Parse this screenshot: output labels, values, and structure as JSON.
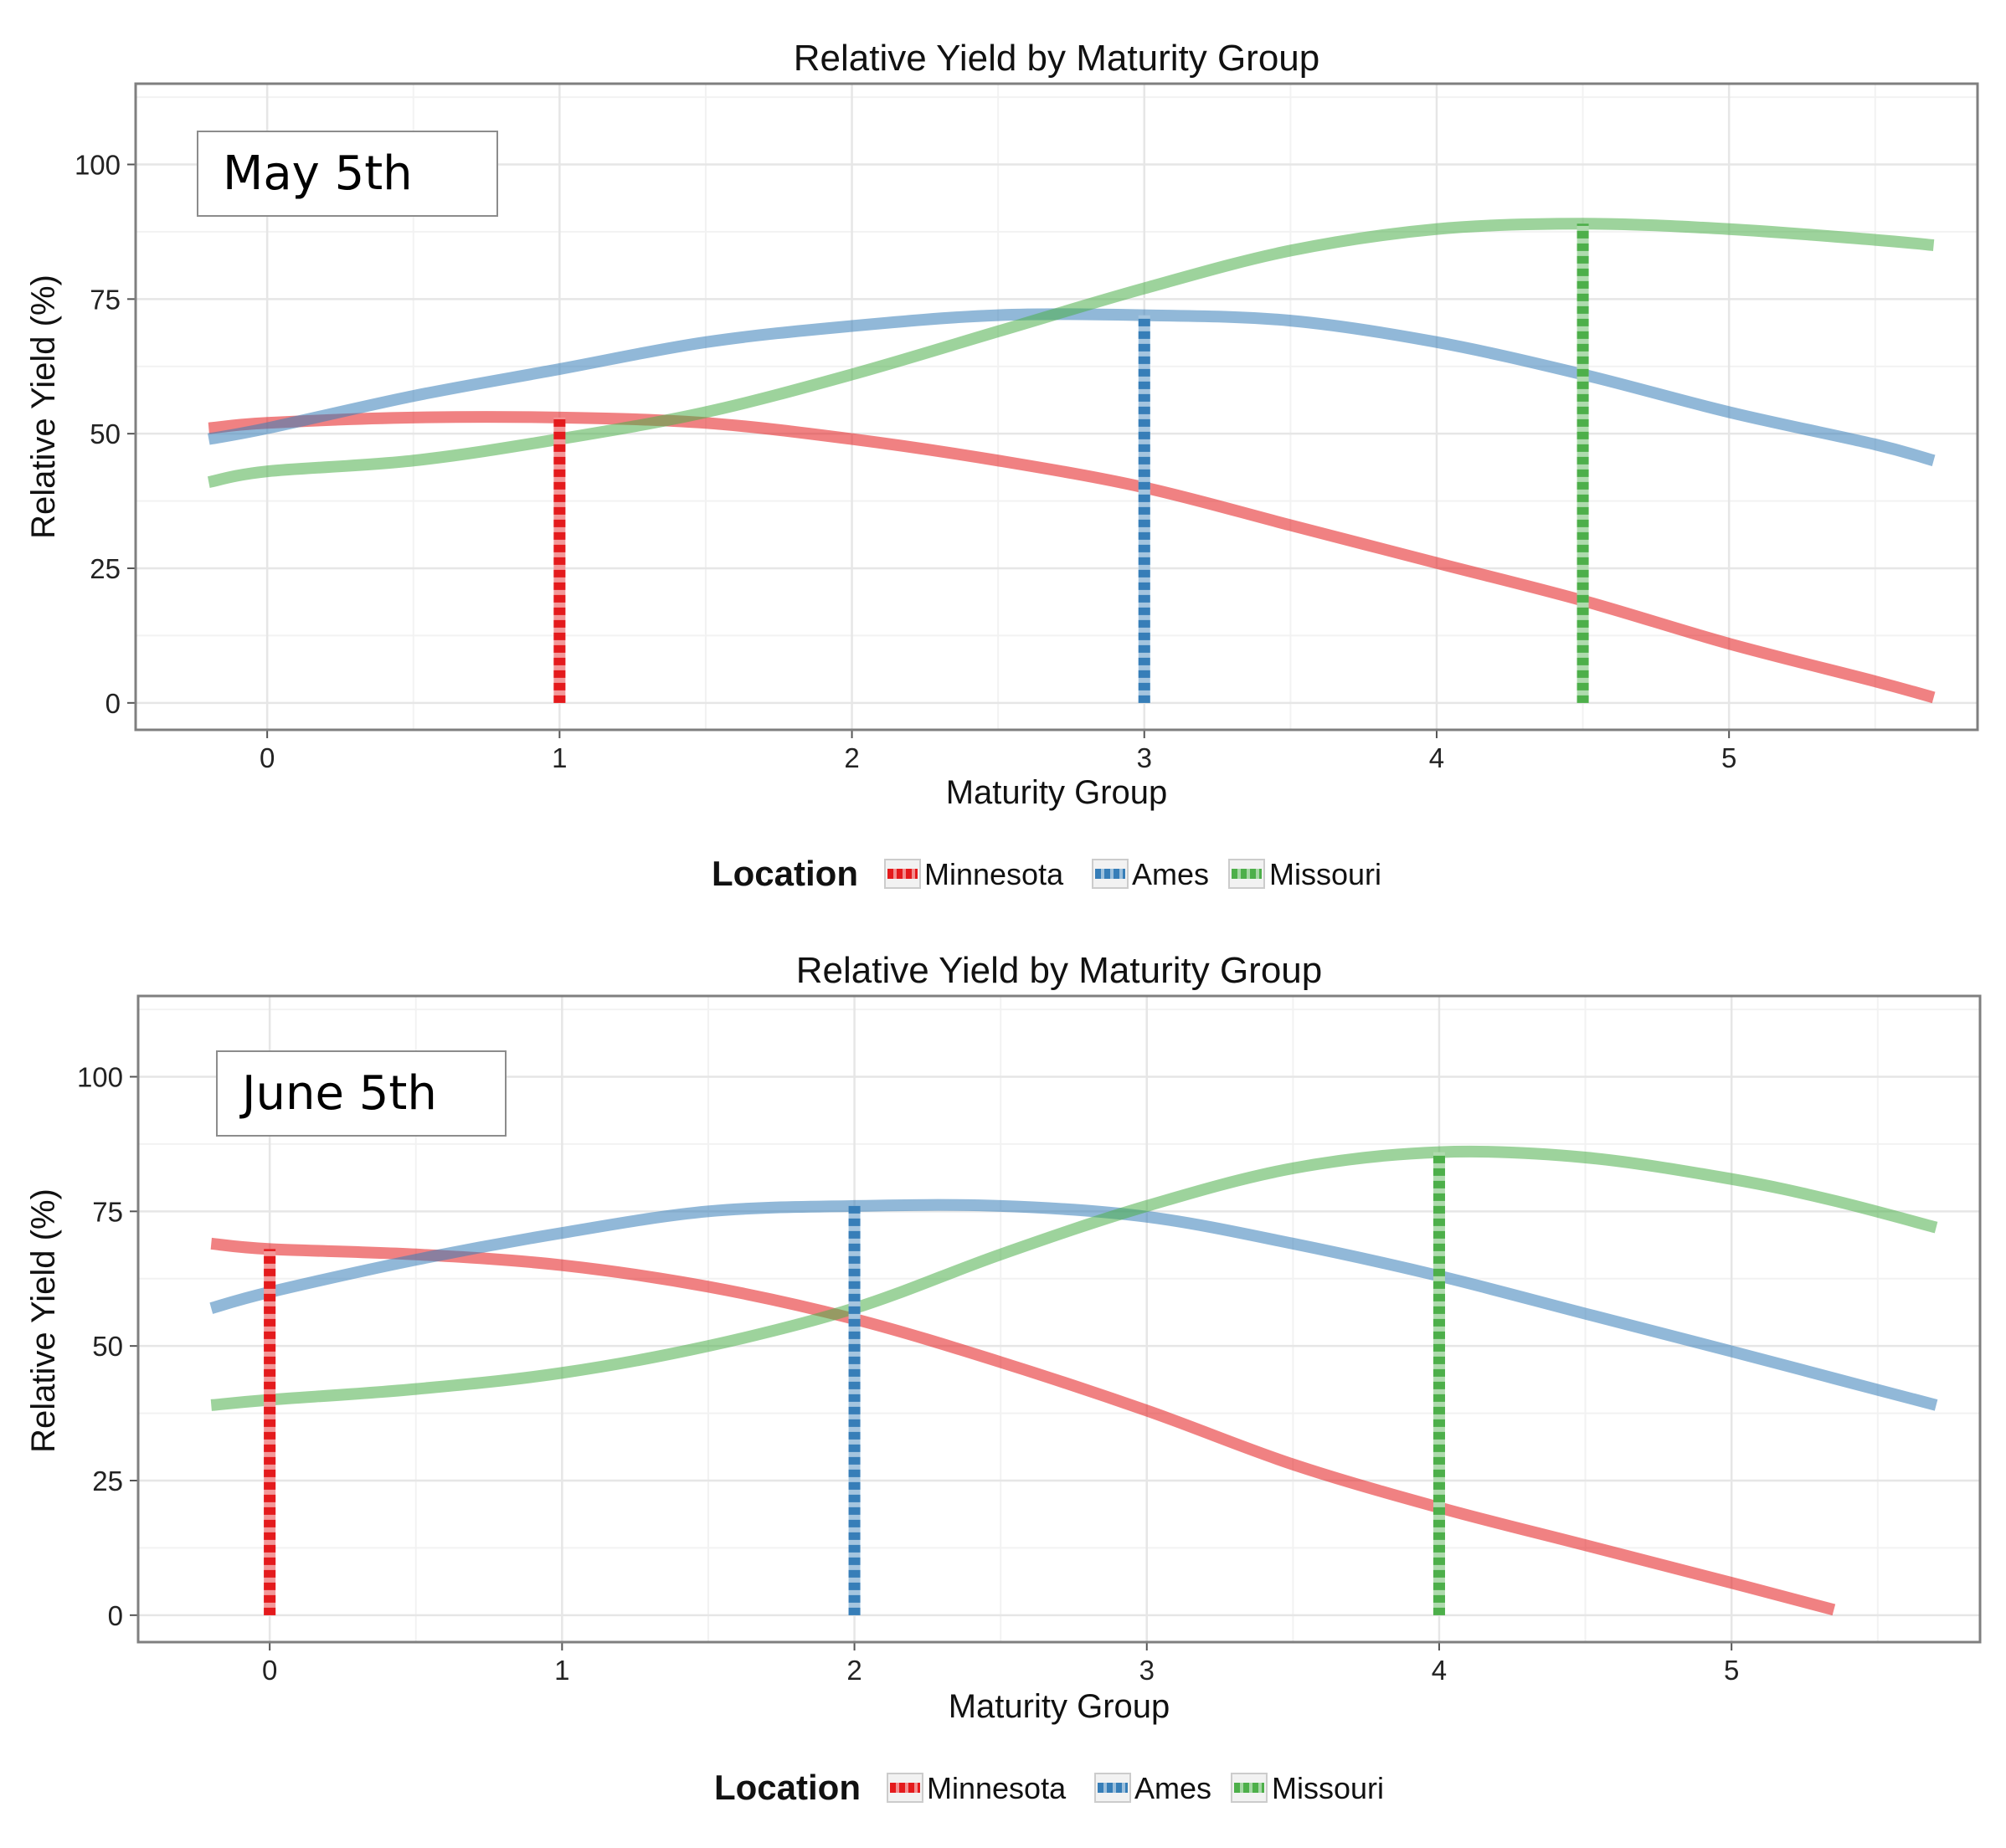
{
  "chart_data": [
    {
      "type": "line",
      "title": "Relative Yield by Maturity Group",
      "annotation": "May 5th",
      "xlabel": "Maturity Group",
      "ylabel": "Relative Yield (%)",
      "xlim": [
        -0.45,
        5.85
      ],
      "ylim": [
        -5,
        115
      ],
      "x_ticks": [
        0,
        1,
        2,
        3,
        4,
        5
      ],
      "y_ticks": [
        0,
        25,
        50,
        75,
        100
      ],
      "grid": true,
      "legend": {
        "title": "Location",
        "position": "bottom"
      },
      "x": [
        -0.2,
        0,
        0.5,
        1,
        1.5,
        2,
        2.5,
        3,
        3.5,
        4,
        4.5,
        5,
        5.5,
        5.7
      ],
      "series": [
        {
          "name": "Minnesota",
          "color": "#e41a1c",
          "values": [
            51,
            52,
            53,
            53,
            52,
            49,
            45,
            40,
            33,
            26,
            19,
            11,
            4,
            1
          ]
        },
        {
          "name": "Ames",
          "color": "#377eb8",
          "values": [
            49,
            51,
            57,
            62,
            67,
            70,
            72,
            72,
            71,
            67,
            61,
            54,
            48,
            45
          ]
        },
        {
          "name": "Missouri",
          "color": "#4daf4a",
          "values": [
            41,
            43,
            45,
            49,
            54,
            61,
            69,
            77,
            84,
            88,
            89,
            88,
            86,
            85
          ]
        }
      ],
      "optimum_lines": [
        {
          "series": "Minnesota",
          "x": 1,
          "y": 53
        },
        {
          "series": "Ames",
          "x": 3,
          "y": 72
        },
        {
          "series": "Missouri",
          "x": 4.5,
          "y": 89
        }
      ]
    },
    {
      "type": "line",
      "title": "Relative Yield by Maturity Group",
      "annotation": "June 5th",
      "xlabel": "Maturity Group",
      "ylabel": "Relative Yield (%)",
      "xlim": [
        -0.45,
        5.85
      ],
      "ylim": [
        -5,
        115
      ],
      "x_ticks": [
        0,
        1,
        2,
        3,
        4,
        5
      ],
      "y_ticks": [
        0,
        25,
        50,
        75,
        100
      ],
      "grid": true,
      "legend": {
        "title": "Location",
        "position": "bottom"
      },
      "x": [
        -0.2,
        0,
        0.5,
        1,
        1.5,
        2,
        2.5,
        3,
        3.5,
        4,
        4.5,
        5,
        5.35,
        5.7
      ],
      "series": [
        {
          "name": "Minnesota",
          "color": "#e41a1c",
          "values": [
            69,
            68,
            67,
            65,
            61,
            55,
            47,
            38,
            28,
            20,
            13,
            6,
            1,
            null
          ]
        },
        {
          "name": "Ames",
          "color": "#377eb8",
          "values": [
            57,
            60,
            66,
            71,
            75,
            76,
            76,
            74,
            69,
            63,
            56,
            49,
            44,
            39
          ]
        },
        {
          "name": "Missouri",
          "color": "#4daf4a",
          "values": [
            39,
            40,
            42,
            45,
            50,
            57,
            67,
            76,
            83,
            86,
            85,
            81,
            77,
            72
          ]
        }
      ],
      "optimum_lines": [
        {
          "series": "Minnesota",
          "x": 0,
          "y": 68
        },
        {
          "series": "Ames",
          "x": 2,
          "y": 76
        },
        {
          "series": "Missouri",
          "x": 4,
          "y": 86
        }
      ]
    }
  ]
}
